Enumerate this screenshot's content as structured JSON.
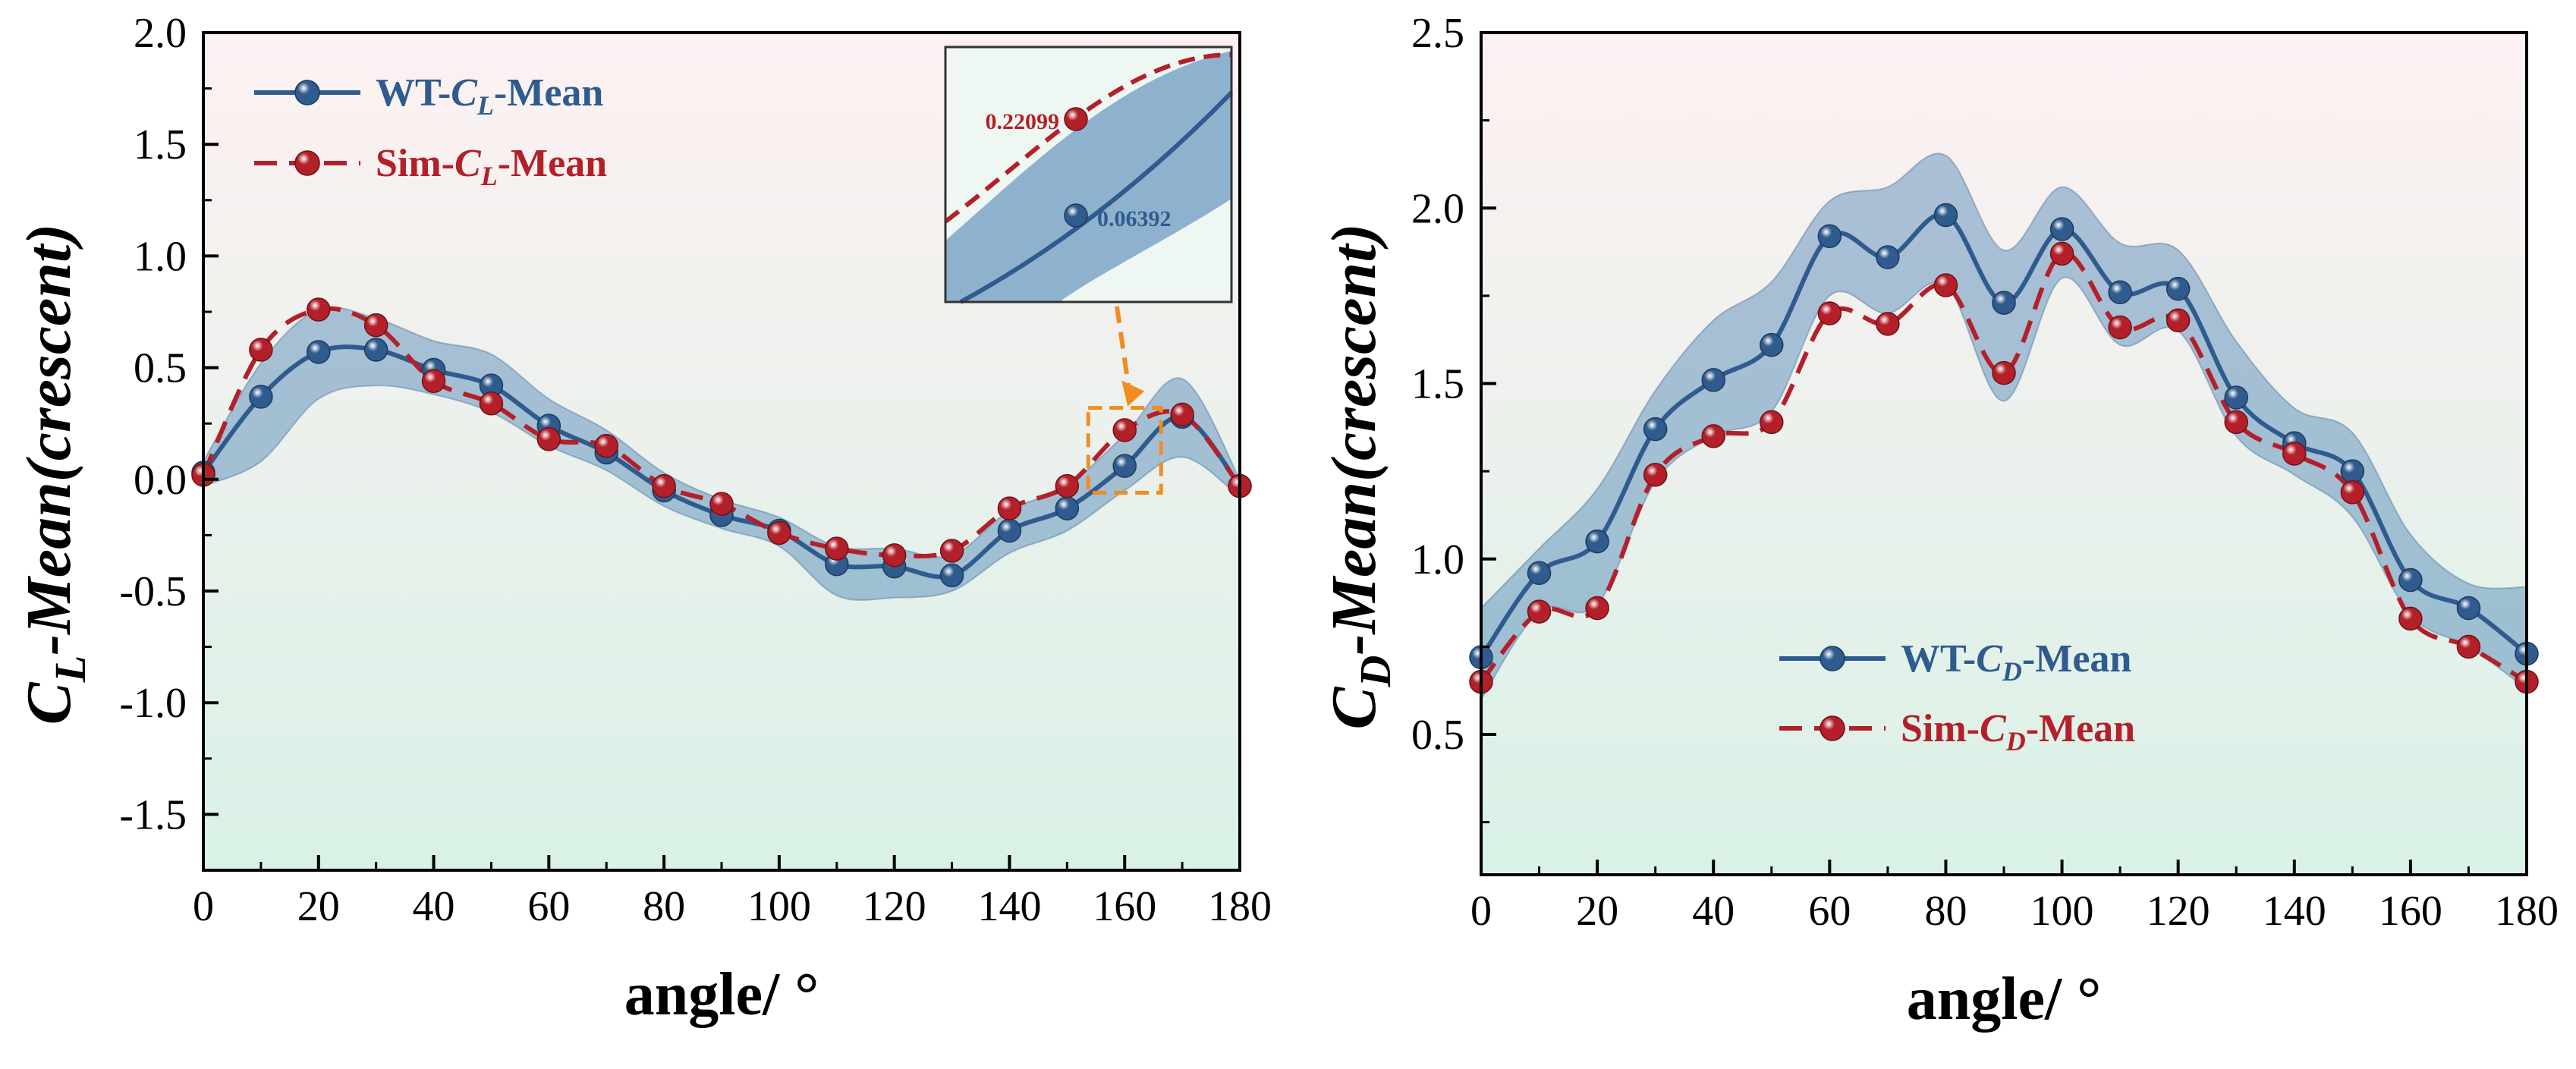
{
  "colors": {
    "wt": "#2f5b8e",
    "sim": "#b3202a",
    "band": "#3f7ab0",
    "bg_top": "#fdf1f2",
    "bg_bottom": "#d9f1e6",
    "inset_arrow": "#f28c1f"
  },
  "chart_data": [
    {
      "type": "line",
      "ylabel_main": "C",
      "ylabel_sub": "L",
      "ylabel_rest": "-Mean(crescent)",
      "xlabel": "angle/ °",
      "xlim": [
        0,
        180
      ],
      "ylim": [
        -1.75,
        2.0
      ],
      "x_ticks": [
        0,
        20,
        40,
        60,
        80,
        100,
        120,
        140,
        160,
        180
      ],
      "x_tick_labels": [
        "0",
        "20",
        "40",
        "60",
        "80",
        "100",
        "120",
        "140",
        "160",
        "180"
      ],
      "y_ticks": [
        -1.5,
        -1.0,
        -0.5,
        0.0,
        0.5,
        1.0,
        1.5,
        2.0
      ],
      "y_tick_labels": [
        "-1.5",
        "-1.0",
        "-0.5",
        "0.0",
        "0.5",
        "1.0",
        "1.5",
        "2.0"
      ],
      "x": [
        0,
        10,
        20,
        30,
        40,
        50,
        60,
        70,
        80,
        90,
        100,
        110,
        120,
        130,
        140,
        150,
        160,
        170,
        180
      ],
      "series": [
        {
          "name_main": "WT-",
          "name_sym": "C",
          "name_sub": "L",
          "name_rest": "-Mean",
          "style": "solid",
          "values": [
            0.03,
            0.37,
            0.57,
            0.58,
            0.49,
            0.42,
            0.24,
            0.12,
            -0.05,
            -0.16,
            -0.23,
            -0.38,
            -0.39,
            -0.43,
            -0.23,
            -0.13,
            0.06,
            0.28,
            -0.03
          ],
          "band_upper": [
            0.08,
            0.52,
            0.76,
            0.72,
            0.62,
            0.56,
            0.36,
            0.22,
            0.03,
            -0.09,
            -0.17,
            -0.3,
            -0.31,
            -0.34,
            -0.14,
            -0.03,
            0.2,
            0.45,
            0.0
          ],
          "band_lower": [
            -0.03,
            0.08,
            0.36,
            0.42,
            0.38,
            0.3,
            0.15,
            0.04,
            -0.12,
            -0.22,
            -0.3,
            -0.52,
            -0.53,
            -0.5,
            -0.33,
            -0.23,
            -0.05,
            0.1,
            -0.08
          ]
        },
        {
          "name_main": "Sim-",
          "name_sym": "C",
          "name_sub": "L",
          "name_rest": "-Mean",
          "style": "dashed",
          "values": [
            0.02,
            0.58,
            0.76,
            0.69,
            0.44,
            0.34,
            0.18,
            0.15,
            -0.03,
            -0.11,
            -0.24,
            -0.31,
            -0.34,
            -0.32,
            -0.13,
            -0.03,
            0.22,
            0.29,
            -0.03
          ]
        }
      ],
      "inset": {
        "sim_label": "0.22099",
        "wt_label": "0.06392",
        "sim_value": 0.22099,
        "wt_value": 0.06392,
        "x": 160
      }
    },
    {
      "type": "line",
      "ylabel_main": "C",
      "ylabel_sub": "D",
      "ylabel_rest": "-Mean(crescent)",
      "xlabel": "angle/ °",
      "xlim": [
        0,
        180
      ],
      "ylim": [
        0.1,
        2.5
      ],
      "x_ticks": [
        0,
        20,
        40,
        60,
        80,
        100,
        120,
        140,
        160,
        180
      ],
      "x_tick_labels": [
        "0",
        "20",
        "40",
        "60",
        "80",
        "100",
        "120",
        "140",
        "160",
        "180"
      ],
      "y_ticks": [
        0.5,
        1.0,
        1.5,
        2.0,
        2.5
      ],
      "y_tick_labels": [
        "0.5",
        "1.0",
        "1.5",
        "2.0",
        "2.5"
      ],
      "x": [
        0,
        10,
        20,
        30,
        40,
        50,
        60,
        70,
        80,
        90,
        100,
        110,
        120,
        130,
        140,
        150,
        160,
        170,
        180
      ],
      "series": [
        {
          "name_main": "WT-",
          "name_sym": "C",
          "name_sub": "D",
          "name_rest": "-Mean",
          "style": "solid",
          "values": [
            0.72,
            0.96,
            1.05,
            1.37,
            1.51,
            1.61,
            1.92,
            1.86,
            1.98,
            1.73,
            1.94,
            1.76,
            1.77,
            1.46,
            1.33,
            1.25,
            0.94,
            0.86,
            0.73
          ],
          "band_upper": [
            0.86,
            1.03,
            1.2,
            1.48,
            1.68,
            1.79,
            2.02,
            2.06,
            2.15,
            1.88,
            2.06,
            1.9,
            1.88,
            1.62,
            1.43,
            1.36,
            1.07,
            0.93,
            0.92
          ],
          "band_lower": [
            0.6,
            0.85,
            0.87,
            1.22,
            1.35,
            1.42,
            1.75,
            1.7,
            1.78,
            1.45,
            1.8,
            1.61,
            1.65,
            1.35,
            1.24,
            1.12,
            0.84,
            0.75,
            0.63
          ]
        },
        {
          "name_main": "Sim-",
          "name_sym": "C",
          "name_sub": "D",
          "name_rest": "-Mean",
          "style": "dashed",
          "values": [
            0.65,
            0.85,
            0.86,
            1.24,
            1.35,
            1.39,
            1.7,
            1.67,
            1.78,
            1.53,
            1.87,
            1.66,
            1.68,
            1.39,
            1.3,
            1.19,
            0.83,
            0.75,
            0.65
          ]
        }
      ]
    }
  ]
}
